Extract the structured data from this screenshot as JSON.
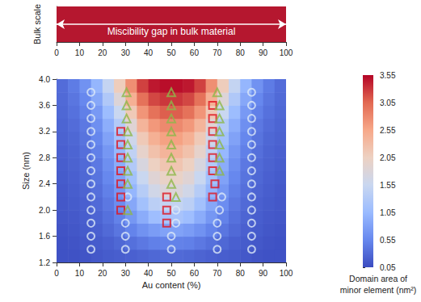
{
  "chart_data": [
    {
      "type": "bar",
      "orientation": "horizontal",
      "ylabel": "Bulk scale",
      "annotation": "Miscibility gap in bulk material",
      "categories": [
        null
      ],
      "values": [
        100
      ],
      "color": "#b5172f",
      "xlim": [
        0,
        100
      ],
      "xticks": [
        0,
        10,
        20,
        30,
        40,
        50,
        60,
        70,
        80,
        90,
        100
      ],
      "grid": false
    },
    {
      "type": "heatmap",
      "xlabel": "Au content (%)",
      "ylabel": "Size (nm)",
      "xlim": [
        0,
        100
      ],
      "xticks": [
        0,
        10,
        20,
        30,
        40,
        50,
        60,
        70,
        80,
        90,
        100
      ],
      "ylim": [
        1.2,
        4.0
      ],
      "yticks": [
        1.2,
        1.6,
        {
          "value": 2,
          "label": "2.0"
        },
        2.4,
        2.8,
        3.2,
        3.6,
        {
          "value": 4,
          "label": "4.0"
        }
      ],
      "grid": false,
      "x": [
        2.5,
        7.5,
        12.5,
        17.5,
        22.5,
        27.5,
        32.5,
        37.5,
        42.5,
        47.5,
        52.5,
        57.5,
        62.5,
        67.5,
        72.5,
        77.5,
        82.5,
        87.5,
        92.5,
        97.5
      ],
      "y": [
        1.3,
        1.5,
        1.7,
        1.9,
        2.1,
        2.3,
        2.5,
        2.7,
        2.9,
        3.1,
        3.3,
        3.5,
        3.7,
        3.9
      ],
      "cells": [
        [
          0.1,
          0.1,
          0.12,
          0.15,
          0.18,
          0.2,
          0.22,
          0.25,
          0.28,
          0.3,
          0.3,
          0.28,
          0.25,
          0.22,
          0.2,
          0.18,
          0.15,
          0.12,
          0.1,
          0.1
        ],
        [
          0.1,
          0.12,
          0.15,
          0.18,
          0.22,
          0.28,
          0.35,
          0.42,
          0.48,
          0.5,
          0.5,
          0.48,
          0.42,
          0.35,
          0.28,
          0.22,
          0.18,
          0.15,
          0.12,
          0.1
        ],
        [
          0.12,
          0.14,
          0.18,
          0.22,
          0.3,
          0.4,
          0.52,
          0.65,
          0.75,
          0.8,
          0.8,
          0.75,
          0.65,
          0.52,
          0.4,
          0.3,
          0.22,
          0.18,
          0.14,
          0.12
        ],
        [
          0.14,
          0.16,
          0.2,
          0.26,
          0.36,
          0.5,
          0.7,
          0.9,
          1.1,
          1.2,
          1.2,
          1.1,
          0.9,
          0.7,
          0.5,
          0.36,
          0.26,
          0.2,
          0.16,
          0.14
        ],
        [
          0.15,
          0.18,
          0.22,
          0.3,
          0.42,
          0.6,
          0.85,
          1.15,
          1.4,
          1.5,
          1.5,
          1.4,
          1.15,
          0.85,
          0.6,
          0.42,
          0.3,
          0.22,
          0.18,
          0.15
        ],
        [
          0.16,
          0.2,
          0.25,
          0.34,
          0.48,
          0.7,
          1.0,
          1.35,
          1.65,
          1.8,
          1.8,
          1.65,
          1.35,
          1.0,
          0.7,
          0.48,
          0.34,
          0.25,
          0.2,
          0.16
        ],
        [
          0.18,
          0.22,
          0.28,
          0.38,
          0.55,
          0.8,
          1.15,
          1.55,
          1.85,
          2.0,
          2.0,
          1.85,
          1.55,
          1.15,
          0.8,
          0.55,
          0.38,
          0.28,
          0.22,
          0.18
        ],
        [
          0.2,
          0.24,
          0.3,
          0.42,
          0.62,
          0.9,
          1.3,
          1.75,
          2.05,
          2.2,
          2.2,
          2.05,
          1.75,
          1.3,
          0.9,
          0.62,
          0.42,
          0.3,
          0.24,
          0.2
        ],
        [
          0.22,
          0.26,
          0.34,
          0.48,
          0.7,
          1.02,
          1.45,
          1.95,
          2.25,
          2.4,
          2.4,
          2.25,
          1.95,
          1.45,
          1.02,
          0.7,
          0.48,
          0.34,
          0.26,
          0.22
        ],
        [
          0.24,
          0.28,
          0.38,
          0.54,
          0.8,
          1.15,
          1.62,
          2.15,
          2.45,
          2.6,
          2.6,
          2.45,
          2.15,
          1.62,
          1.15,
          0.8,
          0.54,
          0.38,
          0.28,
          0.24
        ],
        [
          0.26,
          0.32,
          0.42,
          0.62,
          0.92,
          1.32,
          1.85,
          2.4,
          2.68,
          2.8,
          2.8,
          2.68,
          2.4,
          1.85,
          1.32,
          0.92,
          0.62,
          0.42,
          0.32,
          0.26
        ],
        [
          0.28,
          0.36,
          0.48,
          0.72,
          1.08,
          1.55,
          2.15,
          2.7,
          2.98,
          3.1,
          3.1,
          2.98,
          2.7,
          2.15,
          1.55,
          1.08,
          0.72,
          0.48,
          0.36,
          0.28
        ],
        [
          0.3,
          0.4,
          0.55,
          0.85,
          1.28,
          1.82,
          2.45,
          2.98,
          3.22,
          3.3,
          3.3,
          3.22,
          2.98,
          2.45,
          1.82,
          1.28,
          0.85,
          0.55,
          0.4,
          0.3
        ],
        [
          0.32,
          0.45,
          0.65,
          1.0,
          1.5,
          2.1,
          2.75,
          3.25,
          3.45,
          3.5,
          3.5,
          3.45,
          3.25,
          2.75,
          2.1,
          1.5,
          1.0,
          0.65,
          0.45,
          0.32
        ]
      ],
      "colorbar": {
        "label": "Domain area of\nminor element (nm²)",
        "range": [
          0.05,
          3.55
        ],
        "ticks": [
          0.05,
          0.55,
          1.05,
          1.55,
          2.05,
          2.55,
          3.05,
          3.55
        ],
        "colors": [
          "#3b4cc0",
          "#6788ee",
          "#9abbff",
          "#c9d7f0",
          "#edd1c2",
          "#f7a889",
          "#e26952",
          "#b40426"
        ]
      },
      "series": [
        {
          "type": "scatter",
          "marker": "circle",
          "color": "#dce8f8",
          "x": [
            15,
            15,
            15,
            15,
            15,
            15,
            15,
            15,
            15,
            15,
            15,
            15,
            15,
            85,
            85,
            85,
            85,
            85,
            85,
            85,
            85,
            85,
            85,
            85,
            85,
            85,
            30,
            30,
            30,
            31,
            50,
            50,
            52,
            52,
            72,
            71,
            70,
            70,
            70
          ],
          "y": [
            1.4,
            1.6,
            1.8,
            2.0,
            2.2,
            2.4,
            2.6,
            2.8,
            3.0,
            3.2,
            3.4,
            3.6,
            3.8,
            1.4,
            1.6,
            1.8,
            2.0,
            2.2,
            2.4,
            2.6,
            2.8,
            3.0,
            3.2,
            3.4,
            3.6,
            3.8,
            1.4,
            1.6,
            1.8,
            2.2,
            1.4,
            1.6,
            1.8,
            2.0,
            2.2,
            2.0,
            1.8,
            1.6,
            1.4
          ]
        },
        {
          "type": "scatter",
          "marker": "square",
          "color": "#e0141e",
          "x": [
            28,
            28,
            28,
            28,
            28,
            28,
            28,
            48,
            48,
            48,
            68,
            69,
            68,
            68,
            68,
            68,
            68,
            68
          ],
          "y": [
            2.0,
            2.2,
            2.4,
            2.6,
            2.8,
            3.0,
            3.2,
            1.8,
            2.0,
            2.2,
            2.2,
            2.4,
            2.6,
            2.8,
            3.0,
            3.2,
            3.4,
            3.6
          ]
        },
        {
          "type": "scatter",
          "marker": "triangle",
          "color": "#8db84a",
          "x": [
            30.5,
            30.5,
            30.5,
            31,
            31,
            31,
            31,
            31,
            31,
            50,
            50,
            50,
            50,
            50,
            50,
            50,
            50,
            52,
            70,
            71,
            71,
            71,
            71,
            71,
            71
          ],
          "y": [
            3.4,
            3.6,
            3.8,
            2.0,
            2.4,
            2.6,
            2.8,
            3.0,
            3.2,
            2.4,
            2.6,
            2.8,
            3.0,
            3.2,
            3.4,
            3.6,
            3.8,
            2.2,
            3.8,
            2.6,
            2.8,
            3.0,
            3.2,
            3.4,
            3.6
          ]
        }
      ]
    }
  ]
}
